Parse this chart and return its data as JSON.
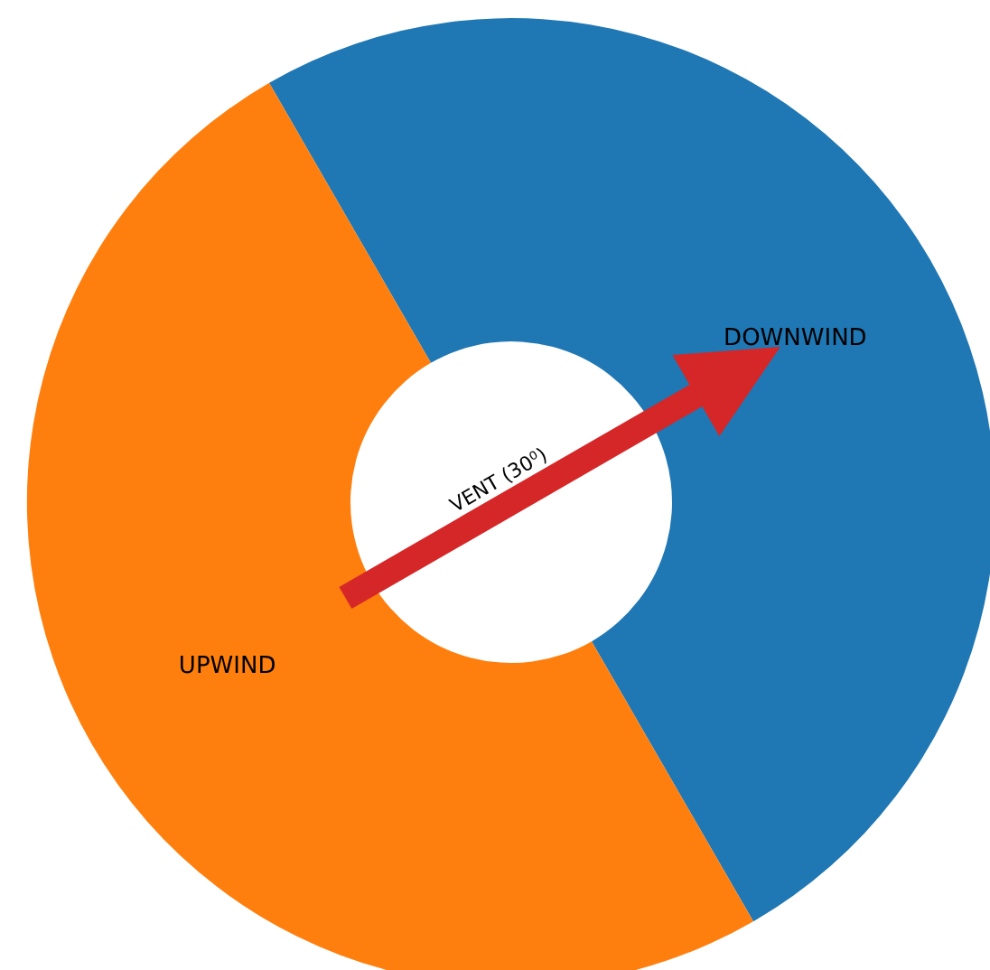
{
  "chart_data": {
    "type": "donut",
    "categories": [
      "DOWNWIND",
      "UPWIND"
    ],
    "values": [
      50,
      50
    ],
    "colors": [
      "#1f77b4",
      "#ff7f0e"
    ],
    "annotations": [
      "VENT (30⁰)"
    ]
  }
}
